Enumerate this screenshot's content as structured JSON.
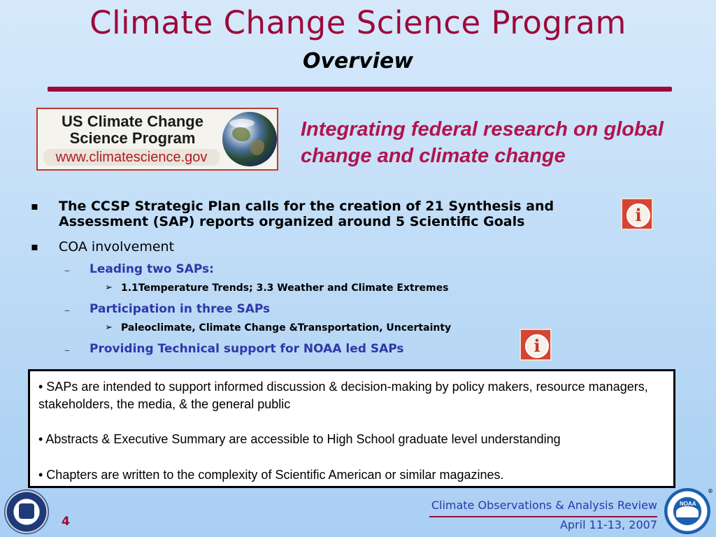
{
  "slide": {
    "title": "Climate Change Science Program",
    "subtitle": "Overview",
    "logo": {
      "line1": "US Climate Change",
      "line2": "Science Program",
      "url": "www.climatescience.gov"
    },
    "tagline": "Integrating federal research on global change and climate change",
    "bullets": {
      "strategic_plan": "The CCSP Strategic Plan calls for the creation of 21 Synthesis and Assessment (SAP) reports organized around 5 Scientific Goals",
      "coa": "COA involvement",
      "leading": "Leading two SAPs:",
      "leading_detail": "1.1Temperature Trends;  3.3 Weather and Climate Extremes",
      "participation": "Participation in three SAPs",
      "participation_detail": "Paleoclimate, Climate Change &Transportation, Uncertainty",
      "technical": "Providing Technical support for NOAA led SAPs"
    },
    "markers": {
      "square": "▪",
      "dash": "–",
      "arrow": "➢",
      "info": "i"
    },
    "box": {
      "p1": "• SAPs are intended to support informed discussion & decision-making by policy makers, resource managers, stakeholders, the media, & the  general public",
      "p2": "• Abstracts & Executive Summary are accessible to High School graduate level understanding",
      "p3": "• Chapters are written to the complexity of Scientific American or similar magazines."
    },
    "footer": {
      "page_number": "4",
      "review": "Climate Observations & Analysis Review",
      "date": "April 11-13, 2007",
      "noaa_label": "NOAA",
      "registered": "®"
    },
    "colors": {
      "title": "#9c0a3a",
      "tagline": "#b0144e",
      "sub_bullets": "#2f37a8",
      "info_button": "#d64533"
    },
    "icons": [
      "info-icon",
      "globe-image",
      "commerce-seal",
      "noaa-logo"
    ]
  }
}
